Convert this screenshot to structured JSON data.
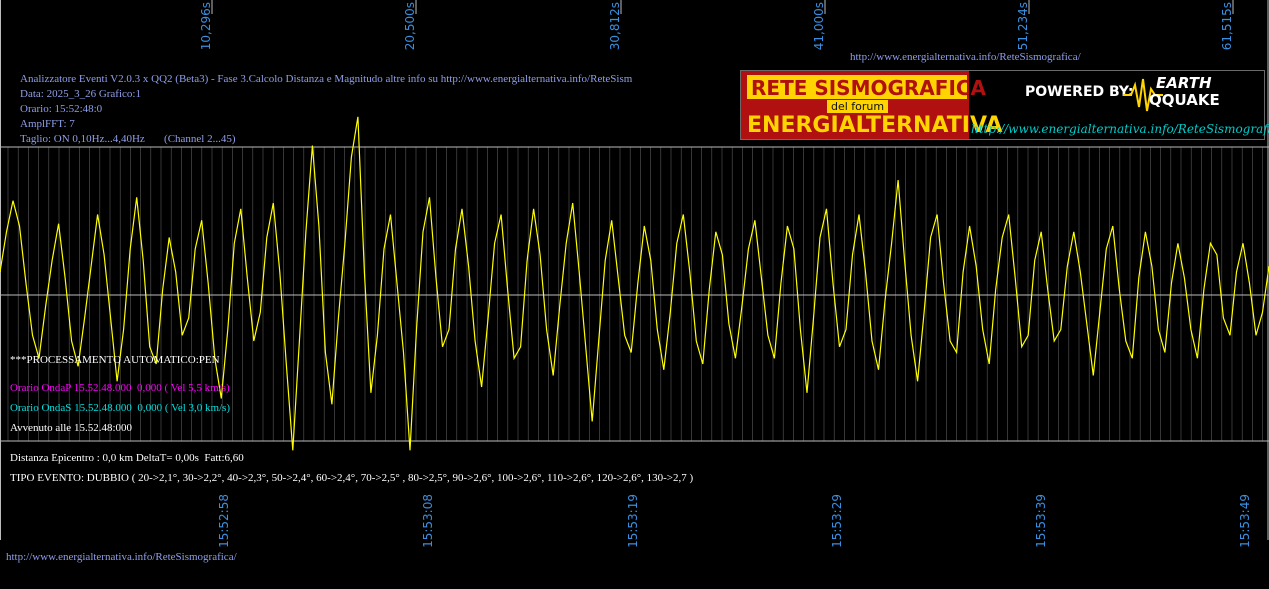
{
  "header": {
    "title": "Analizzatore Eventi V2.0.3 x QQ2 (Beta3) - Fase 3.Calcolo Distanza e Magnitudo altre info su http://www.energialternativa.info/ReteSism",
    "date": "Data: 2025_3_26 Grafico:1",
    "time": "Orario: 15:52:48:0",
    "amplfft": "AmplFFT: 7",
    "filter": "Taglio: ON 0,10Hz...4,40Hz       (Channel 2...45)",
    "url_top": "http://www.energialternativa.info/ReteSismografica/"
  },
  "logo": {
    "line1": "RETE SISMOGRAFICA",
    "line2": "del forum",
    "line3": "ENERGIALTERNATIVA",
    "powered": "POWERED BY:",
    "brand1": "EARTH",
    "brand2": "QQUAKE",
    "url": "http://www.energialternativa.info/ReteSismografica"
  },
  "processing": {
    "title": "***PROCESSAMENTO AUTOMATICO:PEN",
    "onda_p": "Orario OndaP 15.52.48.000  0,000 ( Vel 5,5 km/s)",
    "onda_s": "Orario OndaS 15.52.48.000  0,000 ( Vel 3,0 km/s)",
    "avvenuto": "Avvenuto alle 15.52.48:000",
    "distanza": "Distanza Epicentro : 0,0 km DeltaT= 0,00s  Fatt:6,60",
    "tipo": "TIPO EVENTO: DUBBIO ( 20->2,1°, 30->2,2°, 40->2,3°, 50->2,4°, 60->2,4°, 70->2,5° , 80->2,5°, 90->2,6°, 100->2,6°, 110->2,6°, 120->2,6°, 130->2,7 )"
  },
  "footer_url": "http://www.energialternativa.info/ReteSismografica/",
  "colors": {
    "background": "#000000",
    "trace": "#ffff00",
    "grid": "#5a5a5a",
    "axis_label": "#3b8fe0",
    "info_text": "#8f9fe8",
    "onda_p": "#ff00ff",
    "onda_s": "#00e0e0",
    "white_text": "#ffffff"
  },
  "chart_data": {
    "type": "line",
    "title": "",
    "xlabel": "",
    "ylabel": "",
    "top_ticks": [
      "10,296s",
      "20,500s",
      "30,812s",
      "41,000s",
      "51,234s",
      "61,515s"
    ],
    "bottom_ticks": [
      "15:52:58",
      "15:53:08",
      "15:53:19",
      "15:53:29",
      "15:53:39",
      "15:53:49"
    ],
    "ylim": [
      -1,
      1
    ],
    "grid": true,
    "series": [
      {
        "color": "#ffff00",
        "values": [
          0.2,
          0.55,
          0.82,
          0.6,
          0.1,
          -0.35,
          -0.55,
          -0.1,
          0.3,
          0.62,
          0.15,
          -0.4,
          -0.62,
          -0.2,
          0.25,
          0.7,
          0.35,
          -0.2,
          -0.75,
          -0.3,
          0.4,
          0.85,
          0.3,
          -0.45,
          -0.6,
          0.05,
          0.5,
          0.2,
          -0.35,
          -0.2,
          0.4,
          0.65,
          0.1,
          -0.55,
          -0.9,
          -0.3,
          0.45,
          0.75,
          0.15,
          -0.4,
          -0.15,
          0.5,
          0.8,
          0.2,
          -0.6,
          -1.35,
          -0.4,
          0.55,
          1.3,
          0.6,
          -0.5,
          -0.95,
          -0.2,
          0.45,
          1.2,
          1.55,
          0.2,
          -0.85,
          -0.35,
          0.4,
          0.7,
          0.1,
          -0.5,
          -1.35,
          -0.3,
          0.55,
          0.85,
          0.15,
          -0.45,
          -0.3,
          0.4,
          0.75,
          0.25,
          -0.4,
          -0.8,
          -0.2,
          0.45,
          0.7,
          0.05,
          -0.55,
          -0.45,
          0.3,
          0.75,
          0.35,
          -0.3,
          -0.7,
          -0.1,
          0.45,
          0.8,
          0.2,
          -0.45,
          -1.1,
          -0.4,
          0.3,
          0.65,
          0.15,
          -0.35,
          -0.5,
          0.1,
          0.6,
          0.3,
          -0.3,
          -0.65,
          -0.15,
          0.45,
          0.7,
          0.2,
          -0.4,
          -0.6,
          0.05,
          0.55,
          0.35,
          -0.25,
          -0.55,
          -0.1,
          0.4,
          0.65,
          0.15,
          -0.35,
          -0.55,
          0.1,
          0.6,
          0.4,
          -0.3,
          -0.85,
          -0.2,
          0.5,
          0.75,
          0.1,
          -0.45,
          -0.3,
          0.35,
          0.7,
          0.2,
          -0.4,
          -0.65,
          -0.05,
          0.45,
          1.0,
          0.3,
          -0.35,
          -0.75,
          -0.15,
          0.5,
          0.7,
          0.1,
          -0.4,
          -0.5,
          0.2,
          0.6,
          0.25,
          -0.3,
          -0.6,
          0.05,
          0.5,
          0.7,
          0.15,
          -0.45,
          -0.35,
          0.3,
          0.55,
          0.05,
          -0.4,
          -0.3,
          0.25,
          0.55,
          0.2,
          -0.25,
          -0.7,
          -0.15,
          0.4,
          0.6,
          0.05,
          -0.4,
          -0.55,
          0.15,
          0.55,
          0.25,
          -0.3,
          -0.5,
          0.1,
          0.45,
          0.15,
          -0.3,
          -0.55,
          0.05,
          0.45,
          0.35,
          -0.2,
          -0.35,
          0.2,
          0.45,
          0.1,
          -0.35,
          -0.15,
          0.25
        ]
      }
    ]
  }
}
